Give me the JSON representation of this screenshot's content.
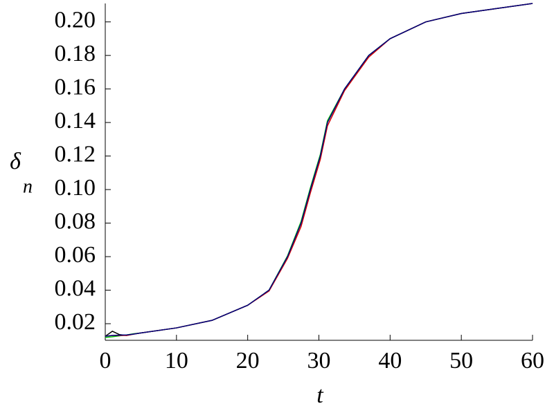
{
  "chart_data": {
    "type": "line",
    "xlabel": "t",
    "ylabel": "δ",
    "ylabel_subscript": "n",
    "x": [
      0,
      1,
      2,
      3,
      4,
      5,
      10,
      15,
      20,
      23,
      25.6,
      27.5,
      28.8,
      30.2,
      31.2,
      33.6,
      37,
      40,
      45,
      50,
      55,
      60
    ],
    "series": [
      {
        "color": "#000000",
        "values": [
          0.0125,
          0.0155,
          0.0135,
          0.013,
          0.0138,
          0.0145,
          0.0175,
          0.022,
          0.031,
          0.04,
          0.06,
          0.08,
          0.1,
          0.12,
          0.14,
          0.16,
          0.18,
          0.19,
          0.2,
          0.205,
          0.208,
          0.211
        ]
      },
      {
        "color": "#00c000",
        "values": [
          0.0118,
          0.0122,
          0.0128,
          0.0133,
          0.014,
          0.0145,
          0.0175,
          0.022,
          0.031,
          0.04,
          0.0605,
          0.081,
          0.101,
          0.121,
          0.141,
          0.16,
          0.18,
          0.19,
          0.2,
          0.205,
          0.208,
          0.211
        ]
      },
      {
        "color": "#d00000",
        "values": [
          0.0125,
          0.013,
          0.013,
          0.013,
          0.0138,
          0.0145,
          0.0175,
          0.022,
          0.031,
          0.0395,
          0.059,
          0.078,
          0.098,
          0.118,
          0.138,
          0.159,
          0.179,
          0.19,
          0.2,
          0.205,
          0.208,
          0.211
        ]
      },
      {
        "color": "#000080",
        "values": [
          0.0125,
          0.013,
          0.0132,
          0.0133,
          0.0138,
          0.0145,
          0.0175,
          0.022,
          0.031,
          0.04,
          0.06,
          0.08,
          0.1,
          0.12,
          0.14,
          0.16,
          0.18,
          0.19,
          0.2,
          0.205,
          0.208,
          0.211
        ]
      }
    ],
    "xlim": [
      0,
      60
    ],
    "xticks": [
      0,
      10,
      20,
      30,
      40,
      50,
      60
    ],
    "ylim": [
      0.0101,
      0.211
    ],
    "yticks": [
      0.02,
      0.04,
      0.06,
      0.08,
      {
        "value": 0.1,
        "label": "0.10"
      },
      0.12,
      0.14,
      0.16,
      0.18,
      {
        "value": 0.2,
        "label": "0.20"
      }
    ]
  }
}
